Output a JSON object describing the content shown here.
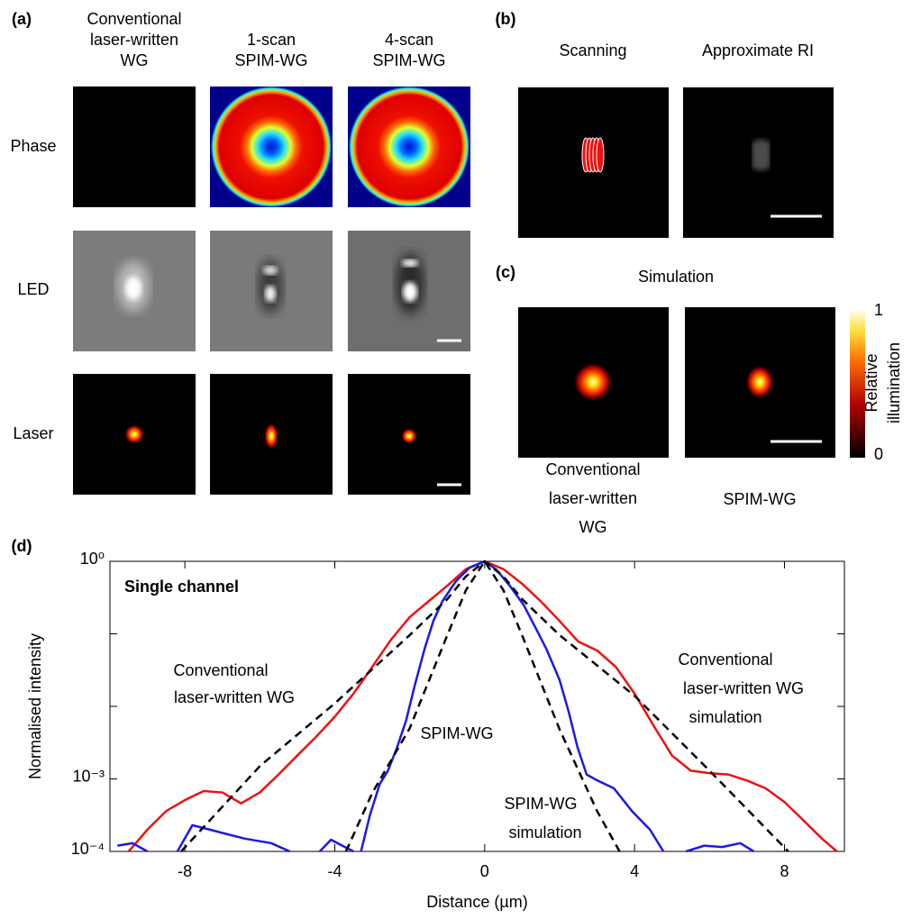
{
  "panel_a": {
    "label": "(a)",
    "columns": [
      [
        "Conventional",
        "laser-written",
        "WG"
      ],
      [
        "1-scan",
        "SPIM-WG"
      ],
      [
        "4-scan",
        "SPIM-WG"
      ]
    ],
    "rows": [
      "Phase",
      "LED",
      "Laser"
    ]
  },
  "panel_b": {
    "label": "(b)",
    "columns": [
      "Scanning",
      "Approximate RI"
    ]
  },
  "panel_c": {
    "label": "(c)",
    "title": "Simulation",
    "captions": [
      [
        "Conventional",
        "laser-written",
        "WG"
      ],
      [
        "SPIM-WG"
      ]
    ],
    "colorbar": {
      "ticks": [
        0,
        1
      ],
      "label": [
        "Relative",
        "illumination"
      ]
    }
  },
  "chart_data": {
    "type": "line",
    "panel_label": "(d)",
    "xlabel": "Distance (µm)",
    "ylabel": "Normalised intensity",
    "xlim": [
      -10,
      9.6
    ],
    "ylim": [
      0.0001,
      1
    ],
    "log_y": true,
    "xticks": [
      -8,
      -4,
      0,
      4,
      8
    ],
    "yticks": [
      {
        "value": 1,
        "label": "10⁰"
      },
      {
        "value": 0.001,
        "label": "10⁻³"
      },
      {
        "value": 0.0001,
        "label": "10⁻⁴"
      }
    ],
    "yminor_ticks": [
      0.1,
      0.01
    ],
    "series": [
      {
        "color": "#ee1111",
        "dash": false,
        "x": [
          -9.5,
          -9,
          -8.5,
          -8,
          -7.5,
          -7,
          -6.5,
          -6,
          -5.5,
          -5,
          -4.5,
          -4,
          -3.5,
          -3,
          -2.5,
          -2,
          -1.5,
          -1,
          -0.5,
          0,
          0.5,
          1,
          1.5,
          2,
          2.5,
          3,
          3.5,
          4,
          4.5,
          5,
          5.5,
          6,
          6.5,
          7,
          7.5,
          8,
          8.5,
          9,
          9.4
        ],
        "values": [
          0.0001,
          0.0002,
          0.00036,
          0.00051,
          0.00068,
          0.00065,
          0.00046,
          0.00065,
          0.00115,
          0.0021,
          0.0038,
          0.0072,
          0.015,
          0.035,
          0.083,
          0.17,
          0.28,
          0.46,
          0.78,
          1,
          0.78,
          0.49,
          0.28,
          0.15,
          0.078,
          0.059,
          0.035,
          0.015,
          0.0055,
          0.0021,
          0.0013,
          0.0012,
          0.00115,
          0.00095,
          0.00074,
          0.00048,
          0.00027,
          0.00015,
          0.0001
        ]
      },
      {
        "color": "#1a1ae6",
        "dash": false,
        "x": [
          -9.8,
          -9.4,
          -9,
          -8.4,
          -8.2,
          -7.8,
          -6.4,
          -5.7,
          -5.2,
          -4.8,
          -4.4,
          -4.1,
          -3.8,
          -3.5,
          -3.4,
          -3.3,
          -3.06,
          -2.8,
          -2.58,
          -2.34,
          -2.1,
          -1.86,
          -1.6,
          -1.37,
          -1.13,
          -0.77,
          -0.4,
          0,
          0.31,
          0.67,
          1.04,
          1.4,
          1.64,
          2,
          2.24,
          2.48,
          2.72,
          2.96,
          3.45,
          3.93,
          4.41,
          4.77,
          5.1,
          5.37,
          5.86,
          6.34,
          6.82,
          7.18
        ],
        "values": [
          0.00012,
          0.00013,
          0.0001,
          null,
          0.0001,
          0.00023,
          0.00015,
          0.00013,
          0.0001,
          null,
          0.0001,
          0.000145,
          0.00012,
          0.0001,
          null,
          0.0001,
          0.00032,
          0.00085,
          0.0013,
          0.0027,
          0.0063,
          0.02,
          0.063,
          0.15,
          0.28,
          0.53,
          0.82,
          1,
          0.77,
          0.46,
          0.25,
          0.11,
          0.063,
          0.023,
          0.0085,
          0.0027,
          0.00115,
          0.00098,
          0.00074,
          0.00036,
          0.0002,
          0.0001,
          null,
          0.0001,
          0.00012,
          0.000115,
          0.00013,
          0.0001
        ]
      },
      {
        "color": "#000000",
        "dash": true,
        "x": [
          -8.1,
          -6,
          -4,
          -2,
          -1,
          -0.5,
          0,
          0.5,
          1,
          2,
          4,
          6,
          8.1
        ],
        "values": [
          0.0001,
          0.0015,
          0.011,
          0.096,
          0.3,
          0.62,
          1,
          0.62,
          0.3,
          0.096,
          0.014,
          0.0013,
          0.0001
        ]
      },
      {
        "color": "#000000",
        "dash": true,
        "x": [
          -3.7,
          -3,
          -2,
          -1,
          -0.5,
          0,
          0.5,
          1,
          2,
          3,
          3.6
        ],
        "values": [
          0.0001,
          0.00064,
          0.005,
          0.095,
          0.4,
          1,
          0.4,
          0.095,
          0.0048,
          0.00036,
          0.0001
        ]
      }
    ],
    "annotations": [
      {
        "lines": [
          "Single channel"
        ],
        "color": "#000000",
        "bold": true
      },
      {
        "lines": [
          "Conventional",
          "laser-written WG"
        ],
        "color": "#ee1111",
        "bold": false
      },
      {
        "lines": [
          "SPIM-WG"
        ],
        "color": "#1a1ae6",
        "bold": false
      },
      {
        "lines": [
          "Conventional",
          "laser-written WG",
          "simulation"
        ],
        "color": "#000000",
        "bold": false
      },
      {
        "lines": [
          "SPIM-WG",
          "simulation"
        ],
        "color": "#000000",
        "bold": false
      }
    ]
  }
}
